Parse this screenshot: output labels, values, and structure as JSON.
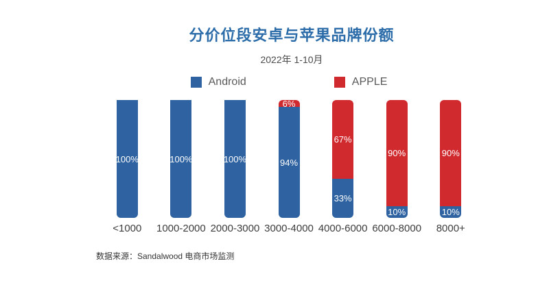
{
  "page": {
    "background_color": "#ffffff",
    "title_color": "#2B6CA9"
  },
  "header": {
    "title": "分价位段安卓与苹果品牌份额",
    "subtitle": "2022年 1-10月"
  },
  "legend": [
    {
      "label": "Android",
      "color": "#2E62A0"
    },
    {
      "label": "APPLE",
      "color": "#D02A2F"
    }
  ],
  "source_note": "数据来源：Sandalwood 电商市场监测",
  "chart_data": {
    "type": "bar",
    "stacked": true,
    "orientation": "vertical",
    "unit": "percent",
    "title": "分价位段安卓与苹果品牌份额",
    "subtitle": "2022年 1-10月",
    "categories": [
      "<1000",
      "1000-2000",
      "2000-3000",
      "3000-4000",
      "4000-6000",
      "6000-8000",
      "8000+"
    ],
    "series": [
      {
        "name": "Android",
        "color": "#2E62A0",
        "values": [
          100,
          100,
          100,
          94,
          33,
          10,
          10
        ]
      },
      {
        "name": "APPLE",
        "color": "#D02A2F",
        "values": [
          0,
          0,
          0,
          6,
          67,
          90,
          90
        ]
      }
    ],
    "ylim": [
      0,
      100
    ],
    "grid": false,
    "axes_shown": false,
    "legend_position": "top",
    "data_labels": "percent shown inside each segment, hidden when value is 0"
  }
}
